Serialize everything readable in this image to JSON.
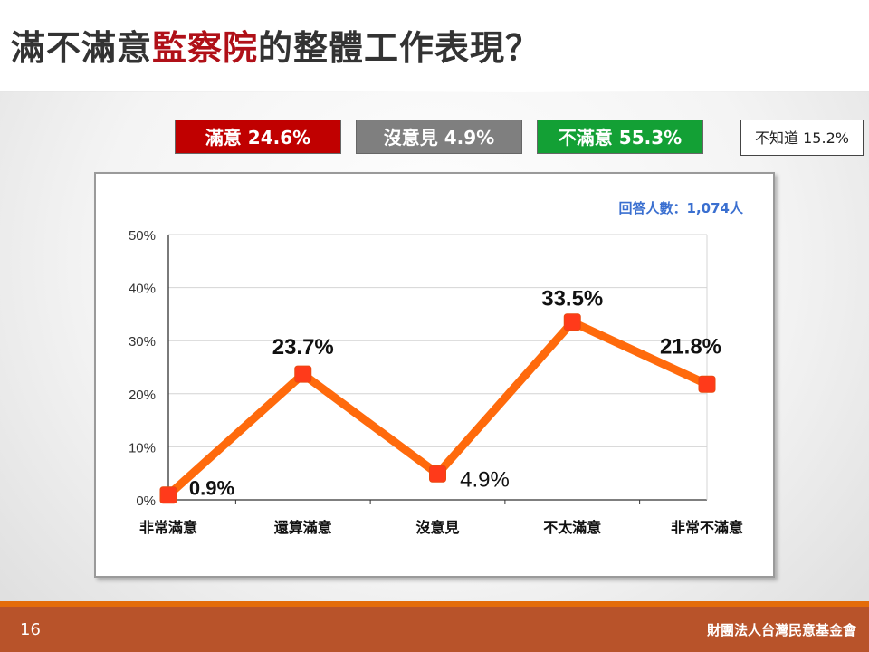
{
  "title": {
    "part1": "滿不滿意",
    "highlight": "監察院",
    "part2": "的整體工作表現？"
  },
  "summary": {
    "satisfied": "滿意 24.6%",
    "no_opinion": "沒意見 4.9%",
    "dissatisfied": "不滿意 55.3%",
    "dont_know": "不知道 15.2%"
  },
  "colors": {
    "highlight": "#b01018",
    "satisfied": "#c00000",
    "no_opinion": "#7f7f7f",
    "dissatisfied": "#13a035",
    "line": "#ff6a0c",
    "marker": "#ff3a1a",
    "footer": "#b8532a",
    "footer_line": "#e46c0a",
    "respondents": "#3a6fd0"
  },
  "chart_data": {
    "type": "line",
    "categories": [
      "非常滿意",
      "還算滿意",
      "沒意見",
      "不太滿意",
      "非常不滿意"
    ],
    "values": [
      0.9,
      23.7,
      4.9,
      33.5,
      21.8
    ],
    "data_labels": [
      "0.9%",
      "23.7%",
      "4.9%",
      "33.5%",
      "21.8%"
    ],
    "ylim": [
      0,
      50
    ],
    "yticks": [
      "0%",
      "10%",
      "20%",
      "30%",
      "40%",
      "50%"
    ],
    "grid": true,
    "annotation": "回答人數：1,074人"
  },
  "footer": {
    "page": "16",
    "org": "財團法人台灣民意基金會"
  }
}
